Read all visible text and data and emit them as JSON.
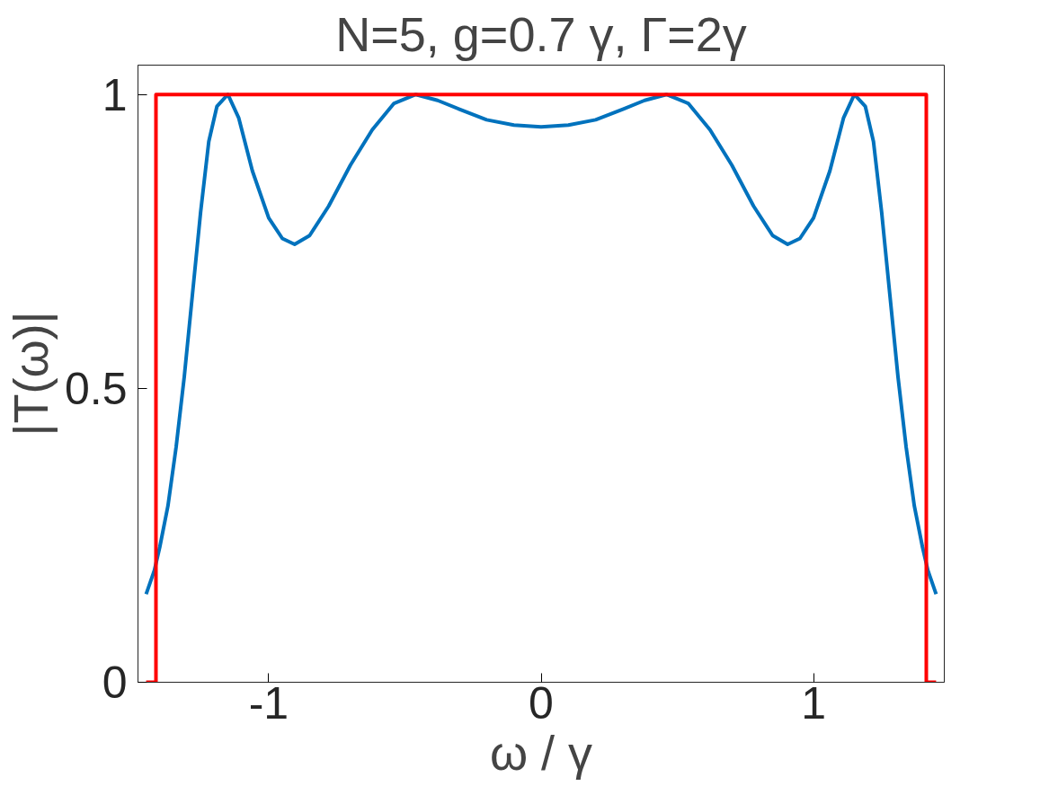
{
  "chart_data": {
    "type": "line",
    "title": "N=5, g=0.7 γ, Γ=2γ",
    "xlabel": "ω / γ",
    "ylabel": "|T(ω)|",
    "xlim": [
      -1.48,
      1.48
    ],
    "ylim": [
      0,
      1.05
    ],
    "xticks": [
      -1,
      0,
      1
    ],
    "yticks": [
      0,
      0.5,
      1
    ],
    "series": [
      {
        "color": "#0072bd",
        "x": [
          -1.45,
          -1.42,
          -1.4,
          -1.37,
          -1.34,
          -1.31,
          -1.28,
          -1.25,
          -1.22,
          -1.19,
          -1.15,
          -1.11,
          -1.06,
          -1.0,
          -0.95,
          -0.905,
          -0.85,
          -0.78,
          -0.7,
          -0.62,
          -0.54,
          -0.46,
          -0.38,
          -0.3,
          -0.2,
          -0.1,
          0,
          0.1,
          0.2,
          0.3,
          0.38,
          0.46,
          0.54,
          0.62,
          0.7,
          0.78,
          0.85,
          0.905,
          0.95,
          1.0,
          1.06,
          1.11,
          1.15,
          1.19,
          1.22,
          1.25,
          1.28,
          1.31,
          1.34,
          1.37,
          1.4,
          1.42,
          1.45
        ],
        "values": [
          0.15,
          0.19,
          0.23,
          0.3,
          0.4,
          0.52,
          0.66,
          0.8,
          0.92,
          0.98,
          1.0,
          0.96,
          0.87,
          0.79,
          0.755,
          0.745,
          0.76,
          0.81,
          0.88,
          0.94,
          0.985,
          1.0,
          0.99,
          0.975,
          0.957,
          0.948,
          0.945,
          0.948,
          0.957,
          0.975,
          0.99,
          1.0,
          0.985,
          0.94,
          0.88,
          0.81,
          0.76,
          0.745,
          0.755,
          0.79,
          0.87,
          0.96,
          1.0,
          0.98,
          0.92,
          0.8,
          0.66,
          0.52,
          0.4,
          0.3,
          0.23,
          0.19,
          0.15
        ]
      },
      {
        "color": "#ff0000",
        "x": [
          -1.45,
          -1.414,
          -1.414,
          1.414,
          1.414,
          1.45
        ],
        "values": [
          0,
          0,
          1,
          1,
          0,
          0
        ]
      }
    ]
  }
}
